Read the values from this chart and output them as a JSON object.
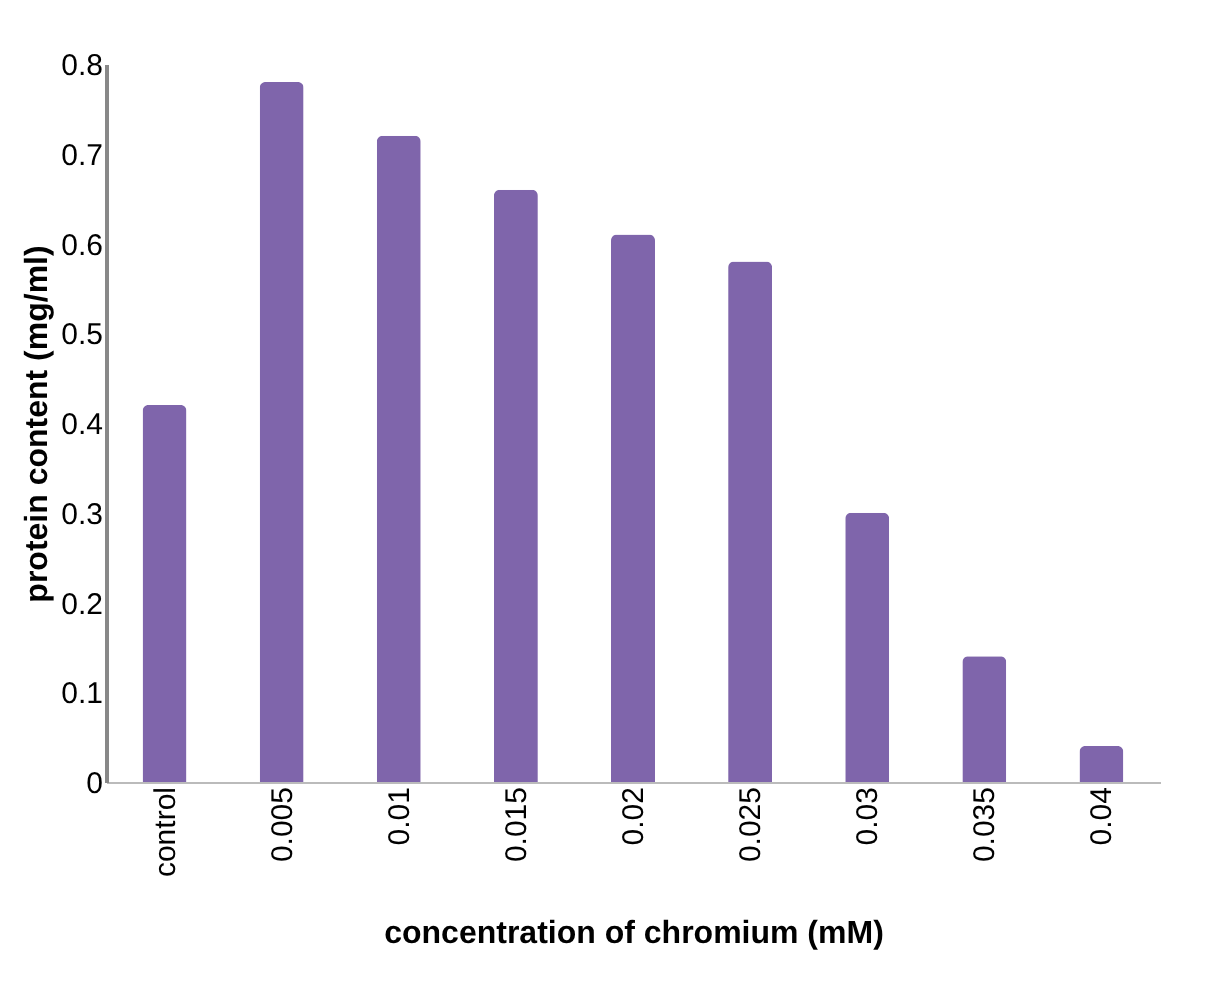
{
  "chart_data": {
    "type": "bar",
    "xlabel": "concentration of chromium (mM)",
    "ylabel": "protein content (mg/ml)",
    "categories": [
      "control",
      "0.005",
      "0.01",
      "0.015",
      "0.02",
      "0.025",
      "0.03",
      "0.035",
      "0.04"
    ],
    "values": [
      0.42,
      0.78,
      0.72,
      0.66,
      0.61,
      0.58,
      0.3,
      0.14,
      0.04
    ],
    "color": "#7f65ab",
    "ylim": [
      0,
      0.8
    ],
    "yticks": [
      0,
      0.1,
      0.2,
      0.3,
      0.4,
      0.5,
      0.6,
      0.7,
      0.8
    ],
    "grid": false
  }
}
